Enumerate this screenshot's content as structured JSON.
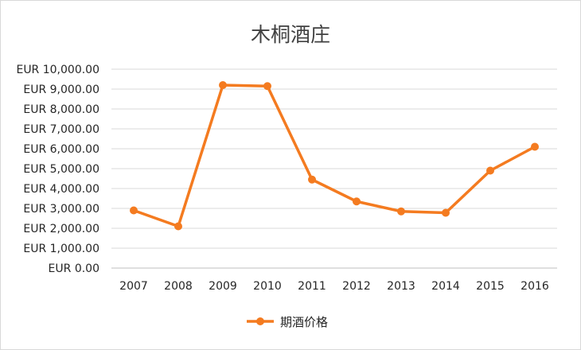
{
  "chart_data": {
    "type": "line",
    "title": "木桐酒庄",
    "xlabel": "",
    "ylabel": "",
    "categories": [
      "2007",
      "2008",
      "2009",
      "2010",
      "2011",
      "2012",
      "2013",
      "2014",
      "2015",
      "2016"
    ],
    "series": [
      {
        "name": "期酒价格",
        "values": [
          2900,
          2100,
          9200,
          9150,
          4450,
          3350,
          2850,
          2780,
          4900,
          6100
        ]
      }
    ],
    "ylim": [
      0,
      10000
    ],
    "yticks": [
      0,
      1000,
      2000,
      3000,
      4000,
      5000,
      6000,
      7000,
      8000,
      9000,
      10000
    ],
    "ytick_labels": [
      "EUR 0.00",
      "EUR 1,000.00",
      "EUR 2,000.00",
      "EUR 3,000.00",
      "EUR 4,000.00",
      "EUR 5,000.00",
      "EUR 6,000.00",
      "EUR 7,000.00",
      "EUR 8,000.00",
      "EUR 9,000.00",
      "EUR 10,000.00"
    ],
    "grid": true,
    "legend_position": "bottom",
    "colors": {
      "series": "#f47b20",
      "grid": "#d9d9d9",
      "axis": "#bfbfbf"
    }
  }
}
